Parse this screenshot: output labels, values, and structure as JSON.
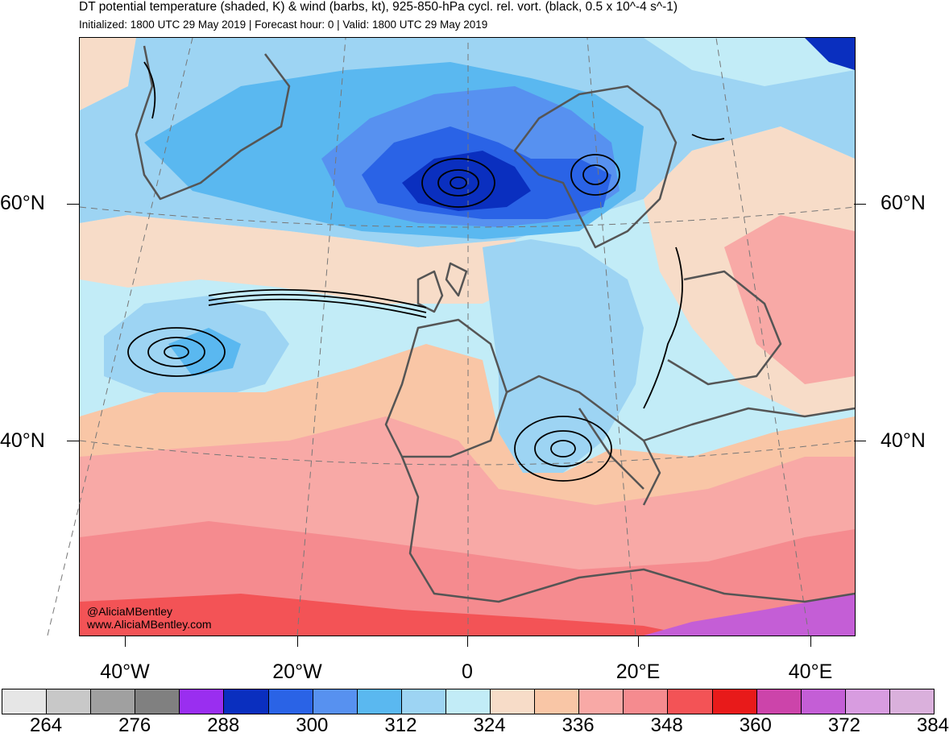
{
  "title": "DT potential temperature (shaded, K) & wind (barbs, kt), 925-850-hPa cycl. rel. vort. (black, 0.5 x 10^-4 s^-1)",
  "subtitle": "Initialized: 1800 UTC 29 May 2019 | Forecast hour: 0 | Valid: 1800 UTC 29 May 2019",
  "lat_labels": {
    "n60_left": "60°N",
    "n60_right": "60°N",
    "n40_left": "40°N",
    "n40_right": "40°N"
  },
  "lon_labels": {
    "w40": "40°W",
    "w20": "20°W",
    "zero": "0",
    "e20": "20°E",
    "e40": "40°E"
  },
  "credit": {
    "handle": "@AliciaMBentley",
    "site": "www.AliciaMBentley.com"
  },
  "colorbar": {
    "colors": [
      "#e6e6e6",
      "#c8c8c8",
      "#a0a0a0",
      "#808080",
      "#9a2ef0",
      "#0a2fbf",
      "#2a63e6",
      "#5791f0",
      "#5ab8f0",
      "#9dd4f3",
      "#c2ecf7",
      "#f7dcc8",
      "#f9c6a6",
      "#f8a9a6",
      "#f58b8f",
      "#f35356",
      "#e81a1a",
      "#cc44aa",
      "#c45ed6",
      "#d89ce0",
      "#dab0dc"
    ],
    "labels": [
      "264",
      "276",
      "288",
      "300",
      "312",
      "324",
      "336",
      "348",
      "360",
      "372",
      "384"
    ]
  }
}
